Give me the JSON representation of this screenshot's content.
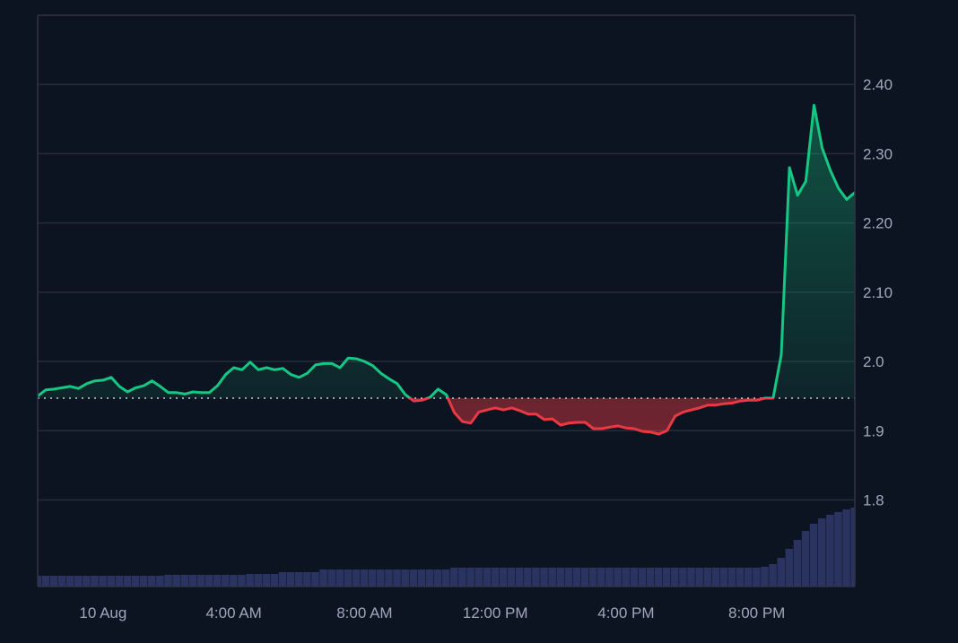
{
  "chart_data": {
    "type": "area",
    "title": "",
    "xlabel": "",
    "ylabel": "",
    "ylim": [
      1.675,
      2.5
    ],
    "grid": true,
    "baseline": 1.947,
    "colors": {
      "background": "#0d1421",
      "up": "#16c784",
      "down": "#ea3943",
      "grid": "#252b3b",
      "volume": "#2b3460",
      "baseline": "#c9ccd6"
    },
    "y_ticks": [
      {
        "value": 2.4,
        "label": "2.40"
      },
      {
        "value": 2.3,
        "label": "2.30"
      },
      {
        "value": 2.2,
        "label": "2.20"
      },
      {
        "value": 2.1,
        "label": "2.10"
      },
      {
        "value": 2.0,
        "label": "2.0"
      },
      {
        "value": 1.9,
        "label": "1.9"
      },
      {
        "value": 1.8,
        "label": "1.8"
      }
    ],
    "x_ticks": [
      {
        "time": "00:00",
        "label": "10 Aug"
      },
      {
        "time": "04:00",
        "label": "4:00 AM"
      },
      {
        "time": "08:00",
        "label": "8:00 AM"
      },
      {
        "time": "12:00",
        "label": "12:00 PM"
      },
      {
        "time": "16:00",
        "label": "4:00 PM"
      },
      {
        "time": "20:00",
        "label": "8:00 PM"
      }
    ],
    "x": [
      "22:00",
      "22:15",
      "22:30",
      "22:45",
      "23:00",
      "23:15",
      "23:30",
      "23:45",
      "00:00",
      "00:15",
      "00:30",
      "00:45",
      "01:00",
      "01:15",
      "01:30",
      "01:45",
      "02:00",
      "02:15",
      "02:30",
      "02:45",
      "03:00",
      "03:15",
      "03:30",
      "03:45",
      "04:00",
      "04:15",
      "04:30",
      "04:45",
      "05:00",
      "05:15",
      "05:30",
      "05:45",
      "06:00",
      "06:15",
      "06:30",
      "06:45",
      "07:00",
      "07:15",
      "07:30",
      "07:45",
      "08:00",
      "08:15",
      "08:30",
      "08:45",
      "09:00",
      "09:15",
      "09:30",
      "09:45",
      "10:00",
      "10:15",
      "10:30",
      "10:45",
      "11:00",
      "11:15",
      "11:30",
      "11:45",
      "12:00",
      "12:15",
      "12:30",
      "12:45",
      "13:00",
      "13:15",
      "13:30",
      "13:45",
      "14:00",
      "14:15",
      "14:30",
      "14:45",
      "15:00",
      "15:15",
      "15:30",
      "15:45",
      "16:00",
      "16:15",
      "16:30",
      "16:45",
      "17:00",
      "17:15",
      "17:30",
      "17:45",
      "18:00",
      "18:15",
      "18:30",
      "18:45",
      "19:00",
      "19:15",
      "19:30",
      "19:45",
      "20:00",
      "20:15",
      "20:30",
      "20:45",
      "21:00",
      "21:15",
      "21:30",
      "21:45",
      "22:00",
      "22:15",
      "22:30",
      "22:45",
      "23:00"
    ],
    "series": [
      {
        "values": [
          1.95,
          1.959,
          1.96,
          1.962,
          1.964,
          1.961,
          1.968,
          1.972,
          1.973,
          1.977,
          1.964,
          1.956,
          1.962,
          1.965,
          1.972,
          1.964,
          1.955,
          1.955,
          1.953,
          1.956,
          1.955,
          1.955,
          1.965,
          1.981,
          1.991,
          1.988,
          1.999,
          1.988,
          1.991,
          1.988,
          1.99,
          1.981,
          1.977,
          1.983,
          1.995,
          1.997,
          1.997,
          1.991,
          2.005,
          2.004,
          2.0,
          1.994,
          1.983,
          1.975,
          1.968,
          1.952,
          1.943,
          1.944,
          1.948,
          1.96,
          1.952,
          1.926,
          1.913,
          1.911,
          1.927,
          1.93,
          1.933,
          1.93,
          1.933,
          1.929,
          1.924,
          1.924,
          1.916,
          1.917,
          1.908,
          1.911,
          1.912,
          1.912,
          1.903,
          1.903,
          1.905,
          1.907,
          1.904,
          1.903,
          1.899,
          1.898,
          1.895,
          1.9,
          1.921,
          1.927,
          1.93,
          1.933,
          1.937,
          1.937,
          1.939,
          1.94,
          1.943,
          1.944,
          1.944,
          1.947,
          1.947,
          2.01,
          2.28,
          2.24,
          2.26,
          2.37,
          2.308,
          2.276,
          2.25,
          2.234,
          2.244
        ]
      }
    ],
    "volume": [
      12,
      12,
      12,
      12,
      12,
      12,
      12,
      12,
      12,
      12,
      12,
      12,
      12,
      12,
      12,
      12,
      13,
      13,
      13,
      13,
      13,
      13,
      13,
      13,
      13,
      13,
      14,
      14,
      14,
      14,
      16,
      16,
      16,
      16,
      16,
      19,
      19,
      19,
      19,
      19,
      19,
      19,
      19,
      19,
      19,
      19,
      19,
      19,
      19,
      19,
      19,
      21,
      21,
      21,
      21,
      21,
      21,
      21,
      21,
      21,
      21,
      21,
      21,
      21,
      21,
      21,
      21,
      21,
      21,
      21,
      21,
      21,
      21,
      21,
      21,
      21,
      21,
      21,
      21,
      21,
      21,
      21,
      21,
      21,
      21,
      21,
      21,
      21,
      21,
      22,
      25,
      32,
      42,
      52,
      62,
      70,
      76,
      80,
      83,
      86,
      88
    ]
  }
}
